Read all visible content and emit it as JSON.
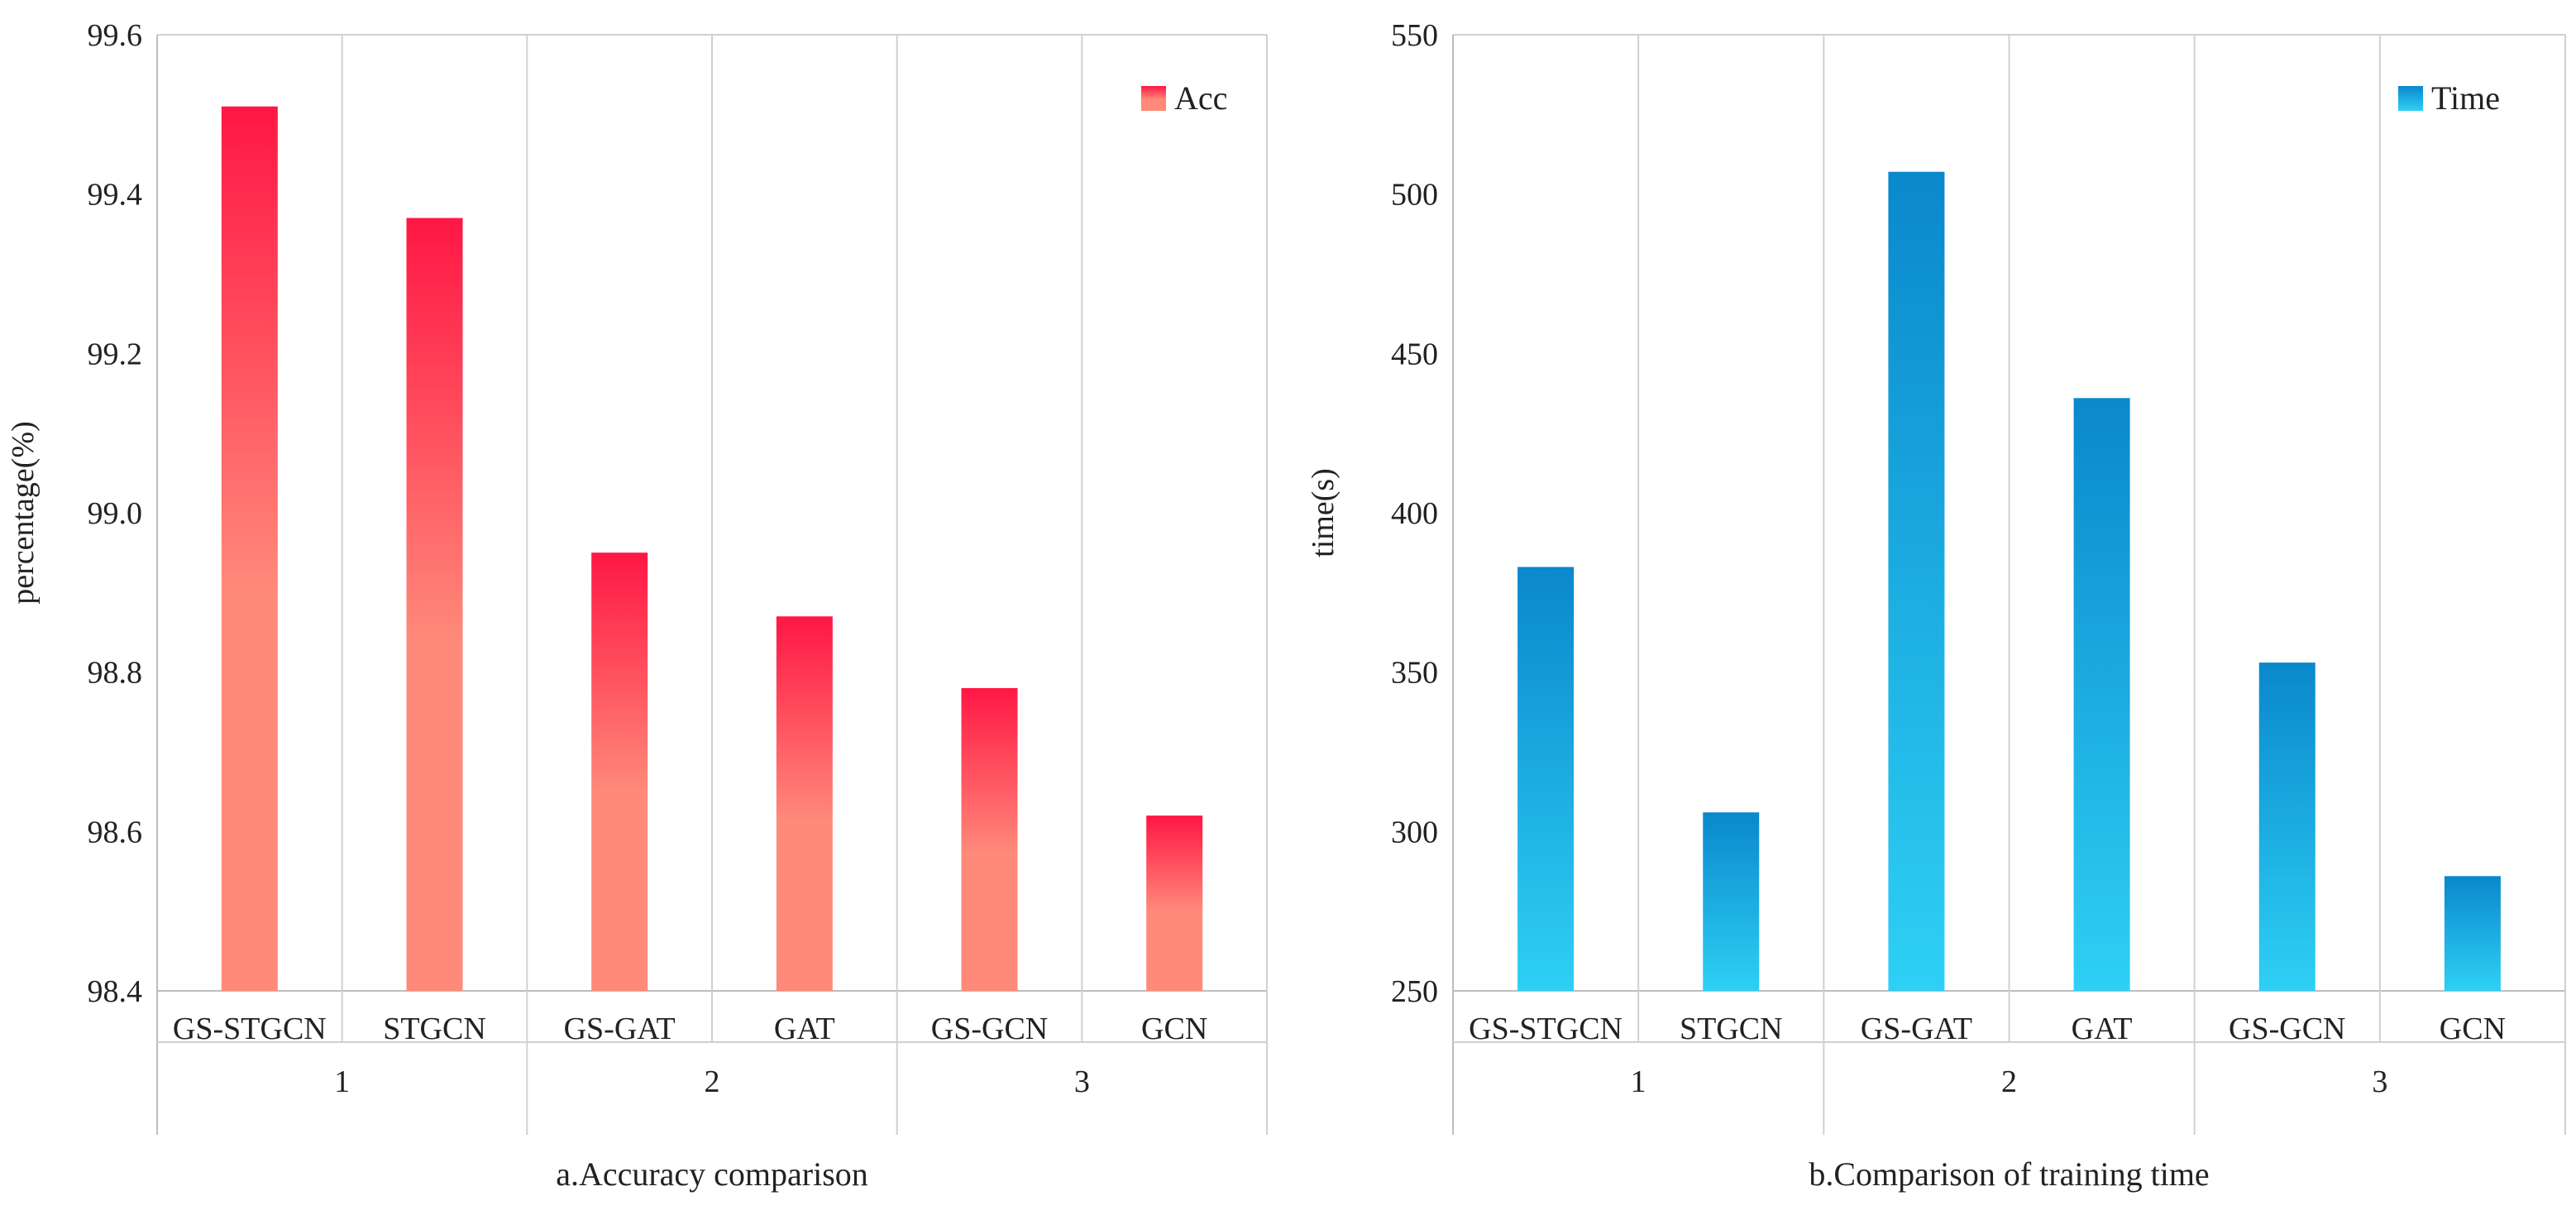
{
  "colors": {
    "acc_top": "#ff1744",
    "acc_bottom": "#ff8a7a",
    "time_top": "#0a88cc",
    "time_bottom": "#2ed0f5",
    "grid": "#d0d0d0",
    "axis": "#bdbdbd"
  },
  "chart_data": [
    {
      "type": "bar",
      "title": "a.Accuracy comparison",
      "ylabel": "percentage(%)",
      "xlabel": "a.Accuracy comparison",
      "ylim": [
        98.4,
        99.6
      ],
      "yticks": [
        "98.4",
        "98.6",
        "98.8",
        "99.0",
        "99.2",
        "99.4",
        "99.6"
      ],
      "categories": [
        "GS-STGCN",
        "STGCN",
        "GS-GAT",
        "GAT",
        "GS-GCN",
        "GCN"
      ],
      "groups": [
        "1",
        "2",
        "3"
      ],
      "series": [
        {
          "name": "Acc",
          "values": [
            99.51,
            99.37,
            98.95,
            98.87,
            98.78,
            98.62
          ]
        }
      ],
      "legend": "top-right"
    },
    {
      "type": "bar",
      "title": "b.Comparison of training time",
      "ylabel": "time(s)",
      "xlabel": "b.Comparison of training time",
      "ylim": [
        250,
        550
      ],
      "yticks": [
        "250",
        "300",
        "350",
        "400",
        "450",
        "500",
        "550"
      ],
      "categories": [
        "GS-STGCN",
        "STGCN",
        "GS-GAT",
        "GAT",
        "GS-GCN",
        "GCN"
      ],
      "groups": [
        "1",
        "2",
        "3"
      ],
      "series": [
        {
          "name": "Time",
          "values": [
            383,
            306,
            507,
            436,
            353,
            286
          ]
        }
      ],
      "legend": "top-right"
    }
  ]
}
